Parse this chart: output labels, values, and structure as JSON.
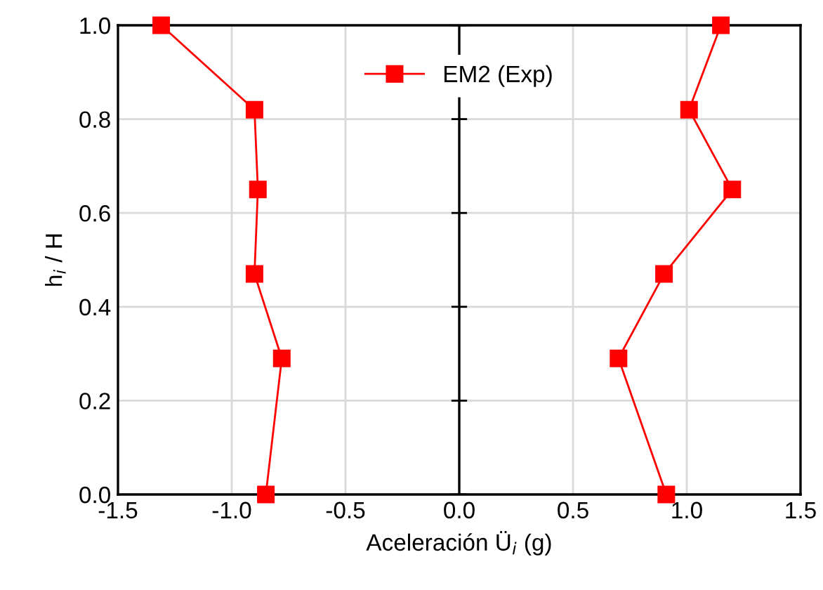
{
  "chart_data": {
    "type": "line",
    "xlabel": "Aceleración Ü$_{i}$ (g)",
    "ylabel": "h$_{i}$ / H",
    "series": [
      {
        "name": "EM2 (Exp)",
        "color": "#ff0000",
        "x": [
          -0.85,
          -0.78,
          -0.9,
          -0.885,
          -0.9,
          -1.31
        ],
        "values": [
          0.0,
          0.29,
          0.47,
          0.65,
          0.82,
          1.0
        ]
      },
      {
        "color": "#ff0000",
        "x": [
          0.91,
          0.7,
          0.9,
          1.2,
          1.01,
          1.15
        ],
        "values": [
          0.0,
          0.29,
          0.47,
          0.65,
          0.82,
          1.0
        ]
      }
    ],
    "xlim": [
      -1.5,
      1.5
    ],
    "xticks": [
      {
        "value": -1.5,
        "label": "-1.5"
      },
      {
        "value": -1.0,
        "label": "-1.0"
      },
      {
        "value": -0.5,
        "label": "-0.5"
      },
      {
        "value": 0.0,
        "label": "0.0"
      },
      {
        "value": 0.5,
        "label": "0.5"
      },
      {
        "value": 1.0,
        "label": "1.0"
      },
      {
        "value": 1.5,
        "label": "1.5"
      }
    ],
    "ylim": [
      0,
      1
    ],
    "yticks": [
      {
        "value": 0,
        "label": "0.0"
      },
      {
        "value": 0.2,
        "label": "0.2"
      },
      {
        "value": 0.4,
        "label": "0.4"
      },
      {
        "value": 0.6,
        "label": "0.6"
      },
      {
        "value": 0.8,
        "label": "0.8"
      },
      {
        "value": 1.0,
        "label": "1.0"
      }
    ],
    "ref_lines": [
      {
        "axis": "x",
        "value": 0,
        "color": "#000000"
      }
    ],
    "grid": true,
    "legend": "top",
    "marker": "square",
    "line_style": "solid"
  }
}
